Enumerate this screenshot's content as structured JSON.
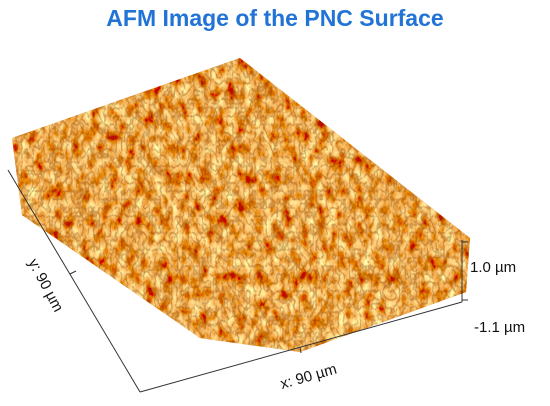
{
  "header": {
    "title": "AFM Image of the PNC Surface"
  },
  "axes": {
    "x_label": "x: 90 µm",
    "y_label": "y: 90 µm"
  },
  "z_scale": {
    "top": "1.0 µm",
    "bottom": "-1.1 µm"
  }
}
